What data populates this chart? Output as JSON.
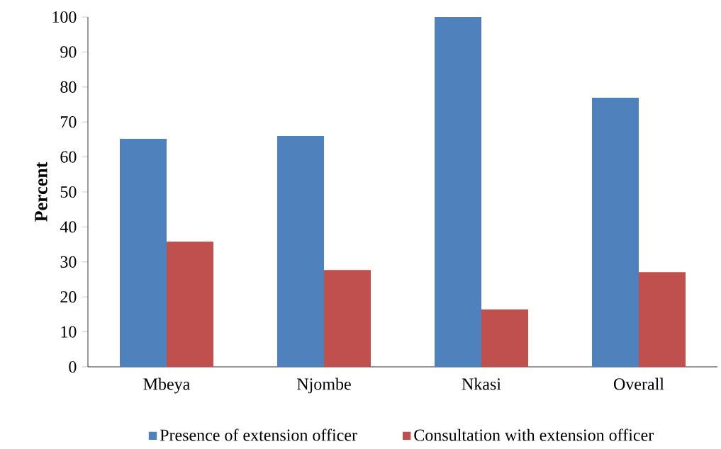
{
  "chart_data": {
    "type": "bar",
    "ylabel": "Percent",
    "categories": [
      "Mbeya",
      "Njombe",
      "Nkasi",
      "Overall"
    ],
    "series": [
      {
        "name": "Presence of extension officer",
        "color": "#4f81bd",
        "values": [
          65.2,
          66.0,
          100.0,
          76.9
        ]
      },
      {
        "name": "Consultation with extension officer",
        "color": "#c0504d",
        "values": [
          35.8,
          27.7,
          16.4,
          27.1
        ]
      }
    ],
    "ylim": [
      0,
      100
    ],
    "yticks": [
      0,
      10,
      20,
      30,
      40,
      50,
      60,
      70,
      80,
      90,
      100
    ],
    "grid": false,
    "legend": "bottom"
  }
}
